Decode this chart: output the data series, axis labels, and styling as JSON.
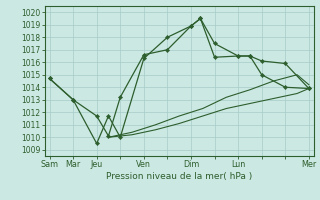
{
  "title": "Pression niveau de la mer( hPa )",
  "bg_color": "#cce8e3",
  "grid_color": "#a8ccc8",
  "line_color": "#2d5e2d",
  "ylim": [
    1008.5,
    1020.5
  ],
  "yticks": [
    1009,
    1010,
    1011,
    1012,
    1013,
    1014,
    1015,
    1016,
    1017,
    1018,
    1019,
    1020
  ],
  "xtick_labels": [
    "Sam",
    "Mar",
    "Jeu",
    "",
    "Ven",
    "",
    "Dim",
    "",
    "Lun",
    "",
    "",
    "Mer"
  ],
  "xlim": [
    -0.2,
    11.2
  ],
  "line1_x": [
    0,
    1,
    2,
    2.5,
    3.0,
    4.0,
    5.0,
    6.0,
    6.4,
    7.0,
    8.0,
    8.5,
    9.0,
    10.0,
    11.0
  ],
  "line1_y": [
    1014.7,
    1013.0,
    1011.7,
    1010.1,
    1013.2,
    1016.6,
    1017.0,
    1018.9,
    1019.5,
    1017.5,
    1016.5,
    1016.5,
    1016.1,
    1015.9,
    1013.9
  ],
  "line2_x": [
    0,
    1,
    2,
    2.5,
    3.0,
    4.0,
    5.0,
    6.0,
    6.4,
    7.0,
    8.0,
    8.5,
    9.0,
    10.0,
    11.0
  ],
  "line2_y": [
    1014.7,
    1013.0,
    1009.5,
    1011.7,
    1010.0,
    1016.3,
    1018.0,
    1018.9,
    1019.5,
    1016.4,
    1016.5,
    1016.5,
    1015.0,
    1014.0,
    1013.9
  ],
  "line3_x": [
    2.5,
    3.5,
    4.5,
    5.5,
    6.5,
    7.5,
    8.5,
    9.5,
    10.5,
    11.0
  ],
  "line3_y": [
    1010.0,
    1010.2,
    1010.6,
    1011.1,
    1011.7,
    1012.3,
    1012.7,
    1013.1,
    1013.5,
    1013.9
  ],
  "line4_x": [
    2.5,
    3.5,
    4.5,
    5.5,
    6.5,
    7.5,
    8.5,
    9.5,
    10.5,
    11.0
  ],
  "line4_y": [
    1010.0,
    1010.4,
    1011.0,
    1011.7,
    1012.3,
    1013.2,
    1013.8,
    1014.5,
    1015.0,
    1014.2
  ]
}
